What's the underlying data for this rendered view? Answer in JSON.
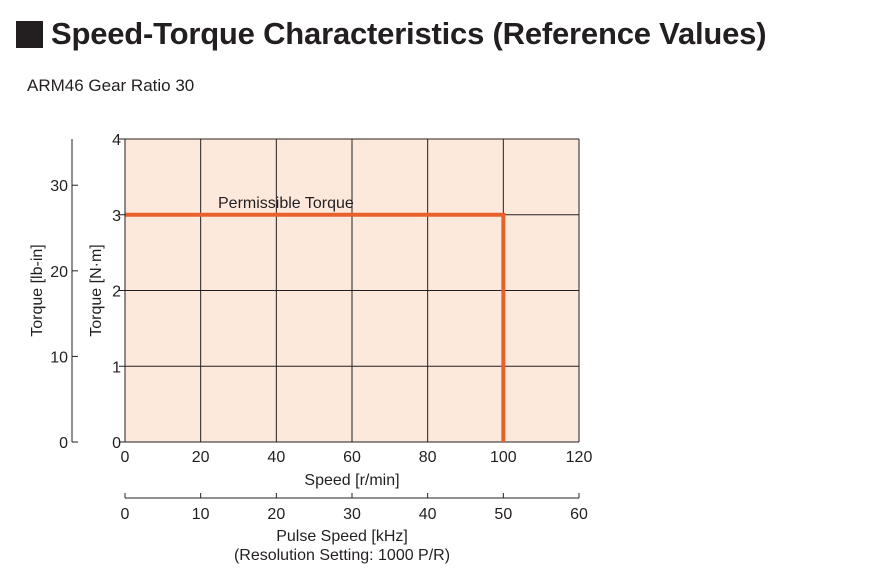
{
  "heading": {
    "title": "Speed-Torque Characteristics (Reference Values)"
  },
  "subtitle": "ARM46 Gear Ratio 30",
  "chart_data": {
    "type": "line",
    "plot_background": "#fde9dc",
    "line_color": "#e8612c",
    "grid": true,
    "x": {
      "label": "Speed [r/min]",
      "range": [
        0,
        120
      ],
      "ticks": [
        0,
        20,
        40,
        60,
        80,
        100,
        120
      ]
    },
    "x2": {
      "label": "Pulse Speed [kHz]",
      "note": "(Resolution Setting: 1000 P/R)",
      "range": [
        0,
        60
      ],
      "ticks": [
        0,
        10,
        20,
        30,
        40,
        50,
        60
      ]
    },
    "y": {
      "label": "Torque [N·m]",
      "range": [
        0,
        4
      ],
      "ticks": [
        0,
        1,
        2,
        3,
        4
      ]
    },
    "y2": {
      "label": "Torque [lb-in]",
      "range": [
        0,
        35.4
      ],
      "ticks": [
        0,
        10,
        20,
        30
      ]
    },
    "series": [
      {
        "name": "Permissible Torque",
        "x": [
          0,
          100,
          100
        ],
        "y": [
          3,
          3,
          0
        ]
      }
    ]
  }
}
